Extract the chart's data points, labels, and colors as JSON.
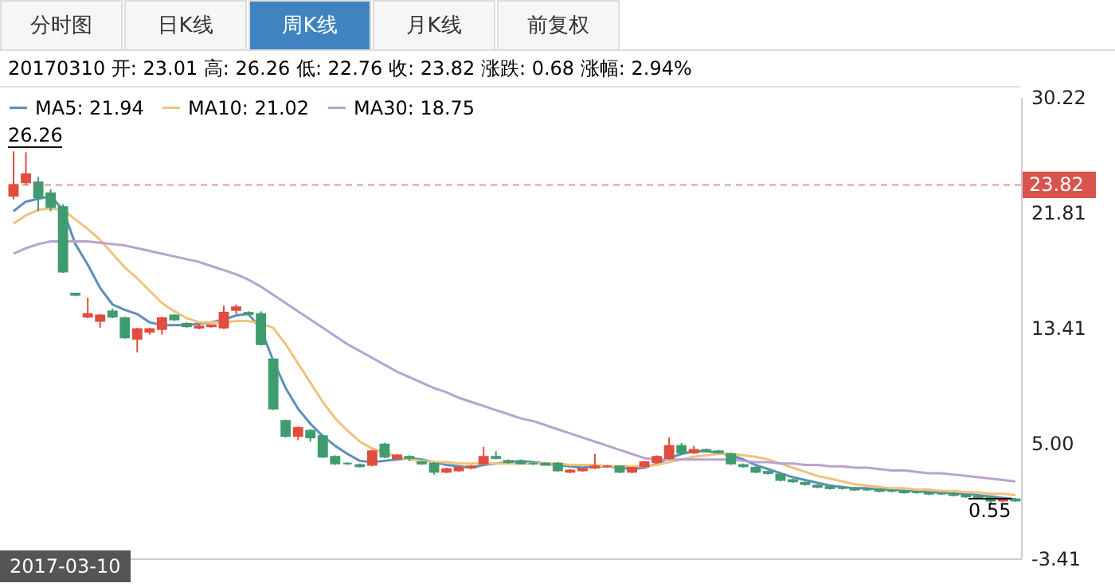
{
  "chart_data": {
    "type": "candlestick",
    "categories": [
      null,
      null,
      null,
      null,
      null,
      null,
      null,
      null,
      null,
      null,
      null,
      null,
      null,
      null,
      null,
      null,
      null,
      null,
      null,
      null,
      null,
      null,
      null,
      null,
      null,
      null,
      null,
      null,
      null,
      null,
      null,
      null,
      null,
      null,
      null,
      null,
      null,
      null,
      null,
      null,
      null,
      null,
      null,
      null,
      null,
      null,
      null,
      null,
      null,
      null,
      null,
      null,
      null,
      null,
      null,
      null,
      null,
      null,
      null,
      null,
      null,
      null,
      null,
      null,
      null,
      null,
      null,
      null,
      null,
      null,
      null,
      null,
      null,
      null,
      null,
      null,
      null,
      null,
      null,
      null,
      null,
      null
    ],
    "ohlc": [
      [
        23.01,
        26.26,
        22.76,
        23.82
      ],
      [
        24.0,
        26.2,
        23.8,
        24.6
      ],
      [
        24.0,
        24.4,
        21.9,
        22.9
      ],
      [
        23.2,
        23.5,
        21.9,
        22.2
      ],
      [
        22.2,
        22.4,
        17.4,
        17.5
      ],
      [
        15.9,
        15.9,
        15.7,
        15.8
      ],
      [
        14.2,
        15.6,
        14.1,
        14.4
      ],
      [
        13.9,
        14.4,
        13.4,
        14.3
      ],
      [
        14.6,
        14.8,
        14.1,
        14.2
      ],
      [
        14.1,
        14.2,
        12.6,
        12.7
      ],
      [
        12.6,
        13.4,
        11.6,
        13.3
      ],
      [
        13.1,
        13.4,
        12.9,
        13.3
      ],
      [
        13.3,
        14.2,
        12.9,
        14.1
      ],
      [
        14.3,
        14.4,
        13.9,
        14.0
      ],
      [
        13.7,
        13.8,
        13.4,
        13.5
      ],
      [
        13.4,
        13.7,
        13.3,
        13.5
      ],
      [
        13.5,
        13.6,
        13.4,
        13.6
      ],
      [
        13.4,
        15.0,
        13.3,
        14.5
      ],
      [
        14.7,
        15.1,
        14.4,
        14.9
      ],
      [
        14.5,
        14.6,
        14.3,
        14.4
      ],
      [
        14.4,
        14.6,
        12.1,
        12.2
      ],
      [
        11.1,
        11.1,
        7.4,
        7.5
      ],
      [
        6.6,
        6.7,
        5.4,
        5.5
      ],
      [
        5.5,
        6.2,
        5.2,
        6.1
      ],
      [
        5.9,
        6.0,
        5.1,
        5.4
      ],
      [
        5.5,
        5.6,
        3.9,
        4.0
      ],
      [
        4.0,
        4.1,
        3.4,
        3.5
      ],
      [
        3.5,
        3.6,
        3.4,
        3.5
      ],
      [
        3.4,
        3.5,
        3.2,
        3.3
      ],
      [
        3.4,
        4.5,
        3.3,
        4.4
      ],
      [
        4.9,
        5.0,
        3.9,
        4.0
      ],
      [
        3.9,
        4.2,
        3.8,
        4.1
      ],
      [
        4.0,
        4.1,
        3.7,
        3.9
      ],
      [
        3.6,
        3.7,
        3.4,
        3.5
      ],
      [
        3.5,
        3.6,
        2.7,
        2.9
      ],
      [
        2.9,
        3.2,
        2.8,
        3.1
      ],
      [
        3.0,
        3.3,
        2.9,
        3.2
      ],
      [
        3.2,
        3.4,
        3.1,
        3.3
      ],
      [
        3.5,
        4.7,
        3.4,
        4.0
      ],
      [
        4.0,
        4.4,
        3.8,
        3.9
      ],
      [
        3.7,
        3.8,
        3.5,
        3.6
      ],
      [
        3.6,
        3.8,
        3.5,
        3.5
      ],
      [
        3.5,
        3.6,
        3.4,
        3.5
      ],
      [
        3.5,
        3.6,
        3.4,
        3.4
      ],
      [
        3.5,
        3.6,
        2.9,
        3.0
      ],
      [
        2.9,
        3.1,
        2.8,
        3.0
      ],
      [
        3.0,
        3.2,
        2.9,
        3.1
      ],
      [
        3.2,
        4.2,
        3.1,
        3.3
      ],
      [
        3.3,
        3.4,
        3.2,
        3.3
      ],
      [
        3.3,
        3.3,
        2.8,
        2.9
      ],
      [
        2.9,
        3.2,
        2.8,
        3.2
      ],
      [
        3.3,
        3.7,
        3.2,
        3.6
      ],
      [
        3.6,
        4.1,
        3.5,
        4.0
      ],
      [
        3.9,
        5.4,
        3.8,
        4.8
      ],
      [
        4.8,
        5.0,
        4.2,
        4.3
      ],
      [
        4.3,
        4.8,
        4.2,
        4.5
      ],
      [
        4.5,
        4.6,
        4.3,
        4.4
      ],
      [
        4.4,
        4.5,
        4.2,
        4.3
      ],
      [
        4.2,
        4.3,
        3.4,
        3.5
      ],
      [
        3.4,
        3.5,
        3.2,
        3.3
      ],
      [
        3.2,
        3.3,
        2.8,
        2.9
      ],
      [
        2.9,
        3.0,
        2.7,
        2.8
      ],
      [
        2.7,
        2.8,
        2.2,
        2.3
      ],
      [
        2.3,
        2.4,
        2.1,
        2.2
      ],
      [
        2.1,
        2.2,
        1.9,
        2.0
      ],
      [
        1.9,
        2.0,
        1.7,
        1.8
      ],
      [
        1.8,
        1.9,
        1.6,
        1.7
      ],
      [
        1.7,
        1.8,
        1.6,
        1.7
      ],
      [
        1.7,
        1.8,
        1.5,
        1.6
      ],
      [
        1.6,
        1.7,
        1.5,
        1.6
      ],
      [
        1.6,
        1.7,
        1.4,
        1.5
      ],
      [
        1.5,
        1.6,
        1.4,
        1.5
      ],
      [
        1.5,
        1.6,
        1.3,
        1.4
      ],
      [
        1.4,
        1.5,
        1.3,
        1.4
      ],
      [
        1.4,
        1.5,
        1.2,
        1.3
      ],
      [
        1.3,
        1.4,
        1.2,
        1.3
      ],
      [
        1.3,
        1.4,
        1.1,
        1.2
      ],
      [
        1.2,
        1.3,
        1.0,
        1.1
      ],
      [
        1.1,
        1.2,
        0.9,
        1.0
      ],
      [
        1.0,
        1.1,
        0.55,
        0.8
      ],
      [
        0.8,
        1.0,
        0.7,
        0.9
      ],
      [
        0.9,
        1.0,
        0.7,
        0.8
      ]
    ],
    "colors": [
      "#e24d3d",
      "#e24d3d",
      "#3f9c6f",
      "#3f9c6f",
      "#3f9c6f",
      "#3f9c6f",
      "#e24d3d",
      "#e24d3d",
      "#3f9c6f",
      "#3f9c6f",
      "#e24d3d",
      "#e24d3d",
      "#e24d3d",
      "#3f9c6f",
      "#3f9c6f",
      "#e24d3d",
      "#e24d3d",
      "#e24d3d",
      "#e24d3d",
      "#3f9c6f",
      "#3f9c6f",
      "#3f9c6f",
      "#3f9c6f",
      "#e24d3d",
      "#3f9c6f",
      "#3f9c6f",
      "#3f9c6f",
      "#3f9c6f",
      "#3f9c6f",
      "#e24d3d",
      "#3f9c6f",
      "#e24d3d",
      "#3f9c6f",
      "#3f9c6f",
      "#3f9c6f",
      "#e24d3d",
      "#e24d3d",
      "#e24d3d",
      "#e24d3d",
      "#3f9c6f",
      "#3f9c6f",
      "#3f9c6f",
      "#3f9c6f",
      "#3f9c6f",
      "#3f9c6f",
      "#e24d3d",
      "#e24d3d",
      "#e24d3d",
      "#e24d3d",
      "#3f9c6f",
      "#e24d3d",
      "#e24d3d",
      "#e24d3d",
      "#e24d3d",
      "#3f9c6f",
      "#e24d3d",
      "#3f9c6f",
      "#3f9c6f",
      "#3f9c6f",
      "#3f9c6f",
      "#3f9c6f",
      "#3f9c6f",
      "#3f9c6f",
      "#3f9c6f",
      "#3f9c6f",
      "#3f9c6f",
      "#3f9c6f",
      "#3f9c6f",
      "#3f9c6f",
      "#3f9c6f",
      "#3f9c6f",
      "#3f9c6f",
      "#3f9c6f",
      "#3f9c6f",
      "#3f9c6f",
      "#3f9c6f",
      "#3f9c6f",
      "#3f9c6f",
      "#3f9c6f",
      "#3f9c6f",
      "#e24d3d",
      "#3f9c6f"
    ],
    "series": [
      {
        "name": "MA5: 21.94",
        "type": "line",
        "color": "#5b8fb9",
        "values": [
          21.9,
          22.6,
          22.8,
          23.0,
          22.0,
          19.5,
          18.0,
          16.3,
          15.1,
          14.7,
          14.4,
          13.8,
          13.6,
          13.6,
          13.6,
          13.7,
          13.8,
          14.0,
          14.3,
          14.4,
          13.3,
          11.0,
          9.0,
          7.5,
          6.4,
          5.5,
          4.8,
          4.2,
          3.7,
          3.6,
          3.7,
          3.8,
          3.9,
          3.8,
          3.6,
          3.4,
          3.3,
          3.2,
          3.4,
          3.5,
          3.6,
          3.7,
          3.6,
          3.5,
          3.4,
          3.3,
          3.2,
          3.3,
          3.3,
          3.2,
          3.1,
          3.2,
          3.5,
          3.9,
          4.2,
          4.4,
          4.4,
          4.3,
          4.1,
          3.8,
          3.4,
          3.1,
          2.8,
          2.5,
          2.3,
          2.1,
          1.9,
          1.8,
          1.7,
          1.7,
          1.6,
          1.6,
          1.5,
          1.5,
          1.4,
          1.4,
          1.3,
          1.3,
          1.2,
          1.1,
          1.0,
          0.9
        ]
      },
      {
        "name": "MA10: 21.02",
        "type": "line",
        "color": "#f0c27b",
        "values": [
          21.0,
          21.6,
          22.0,
          22.1,
          22.0,
          21.3,
          20.6,
          19.8,
          18.8,
          17.8,
          17.0,
          16.1,
          15.2,
          14.6,
          14.1,
          13.8,
          13.8,
          13.8,
          13.9,
          13.9,
          13.7,
          13.4,
          12.2,
          10.8,
          9.4,
          8.0,
          6.8,
          5.9,
          5.1,
          4.6,
          4.3,
          4.0,
          3.8,
          3.7,
          3.6,
          3.6,
          3.5,
          3.5,
          3.5,
          3.5,
          3.5,
          3.5,
          3.5,
          3.5,
          3.5,
          3.4,
          3.4,
          3.4,
          3.3,
          3.3,
          3.3,
          3.3,
          3.4,
          3.6,
          3.8,
          4.0,
          4.1,
          4.2,
          4.2,
          4.1,
          4.0,
          3.8,
          3.5,
          3.2,
          2.9,
          2.6,
          2.4,
          2.2,
          2.0,
          1.9,
          1.8,
          1.7,
          1.7,
          1.6,
          1.6,
          1.5,
          1.5,
          1.4,
          1.4,
          1.3,
          1.3,
          1.2
        ]
      },
      {
        "name": "MA30: 18.75",
        "type": "line",
        "color": "#b8a3cf",
        "values": [
          18.8,
          19.2,
          19.5,
          19.7,
          19.7,
          19.7,
          19.7,
          19.6,
          19.5,
          19.4,
          19.2,
          19.0,
          18.8,
          18.6,
          18.4,
          18.2,
          17.9,
          17.6,
          17.3,
          16.9,
          16.4,
          15.8,
          15.2,
          14.6,
          14.0,
          13.4,
          12.8,
          12.2,
          11.7,
          11.2,
          10.7,
          10.2,
          9.8,
          9.4,
          9.0,
          8.7,
          8.3,
          8.0,
          7.7,
          7.4,
          7.1,
          6.8,
          6.6,
          6.3,
          6.0,
          5.7,
          5.4,
          5.1,
          4.8,
          4.5,
          4.2,
          3.9,
          3.8,
          3.8,
          3.8,
          3.8,
          3.8,
          3.8,
          3.8,
          3.7,
          3.6,
          3.6,
          3.5,
          3.5,
          3.4,
          3.4,
          3.3,
          3.3,
          3.2,
          3.2,
          3.1,
          3.0,
          3.0,
          2.9,
          2.8,
          2.8,
          2.7,
          2.6,
          2.5,
          2.4,
          2.3,
          2.2
        ]
      }
    ],
    "ylim": [
      -3.41,
      30.22
    ],
    "yticks": [
      {
        "value": 30.22,
        "label": "30.22"
      },
      {
        "value": 21.81,
        "label": "21.81"
      },
      {
        "value": 13.41,
        "label": "13.41"
      },
      {
        "value": 5,
        "label": "5.00"
      },
      {
        "value": -3.41,
        "label": "-3.41"
      }
    ],
    "tick_labels": "y",
    "grid": false,
    "legend": "top left",
    "ref_lines": [
      {
        "axis": "y",
        "value": 23.82,
        "label": "23.82",
        "color": "#d9534f",
        "line_style": "dashed"
      }
    ],
    "annotations": [
      "分时图",
      "日K线",
      "周K线",
      "月K线",
      "前复权",
      "20170310 开: 23.01 高: 26.26 低: 22.76 收: 23.82 涨跌: 0.68 涨幅: 2.94%",
      "2017-03-10",
      "26.26",
      "0.55"
    ]
  }
}
